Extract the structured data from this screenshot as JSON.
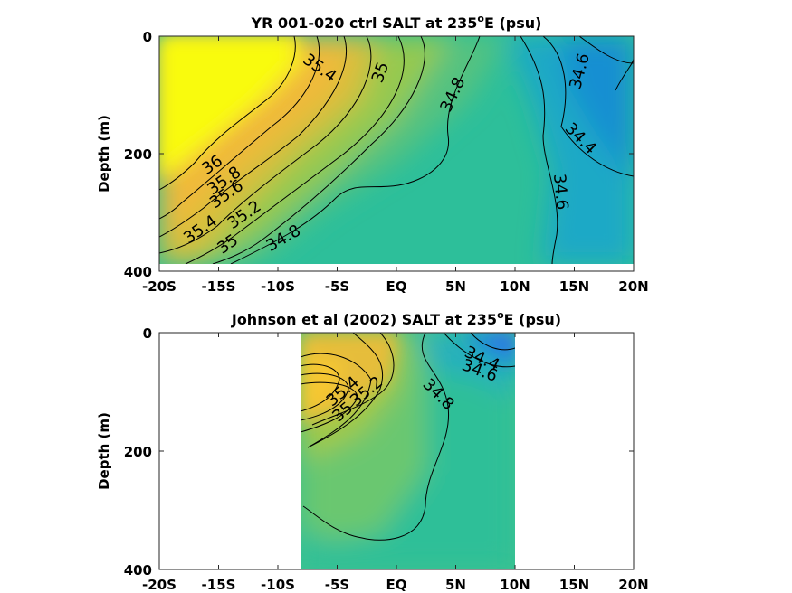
{
  "chart_data": [
    {
      "type": "heatmap",
      "title": "YR 001-020 ctrl SALT at 235",
      "title_sup": "o",
      "title_end": "E (psu)",
      "xlabel": "",
      "ylabel": "Depth (m)",
      "x_ticks": [
        -20,
        -15,
        -10,
        -5,
        0,
        5,
        10,
        15,
        20
      ],
      "x_tick_labels": [
        "-20S",
        "-15S",
        "-10S",
        "-5S",
        "EQ",
        "5N",
        "10N",
        "15N",
        "20N"
      ],
      "y_ticks": [
        0,
        200,
        400
      ],
      "y_tick_labels": [
        "0",
        "200",
        "400"
      ],
      "xlim": [
        -20,
        20
      ],
      "ylim": [
        400,
        0
      ],
      "data_extent": {
        "x": [
          -20,
          20
        ],
        "depth": [
          0,
          385
        ]
      },
      "contour_labels": [
        {
          "text": "35.4",
          "lat": -6.5,
          "depth": 55,
          "angle": 35
        },
        {
          "text": "35",
          "lat": -1.3,
          "depth": 62,
          "angle": -70
        },
        {
          "text": "34.8",
          "lat": 4.8,
          "depth": 100,
          "angle": -65
        },
        {
          "text": "34.6",
          "lat": 15.5,
          "depth": 60,
          "angle": -75
        },
        {
          "text": "34.4",
          "lat": 15.5,
          "depth": 175,
          "angle": 45
        },
        {
          "text": "34.6",
          "lat": 13.8,
          "depth": 265,
          "angle": 85
        },
        {
          "text": "36",
          "lat": -15.5,
          "depth": 220,
          "angle": -35
        },
        {
          "text": "35.8",
          "lat": -14.5,
          "depth": 247,
          "angle": -35
        },
        {
          "text": "35.6",
          "lat": -14.3,
          "depth": 270,
          "angle": -35
        },
        {
          "text": "35.4",
          "lat": -16.5,
          "depth": 330,
          "angle": -35
        },
        {
          "text": "35.2",
          "lat": -12.8,
          "depth": 305,
          "angle": -35
        },
        {
          "text": "35",
          "lat": -14.2,
          "depth": 355,
          "angle": -35
        },
        {
          "text": "34.8",
          "lat": -9.5,
          "depth": 345,
          "angle": -30
        }
      ]
    },
    {
      "type": "heatmap",
      "title": "Johnson et al (2002) SALT at 235",
      "title_sup": "o",
      "title_end": "E (psu)",
      "xlabel": "",
      "ylabel": "Depth (m)",
      "x_ticks": [
        -20,
        -15,
        -10,
        -5,
        0,
        5,
        10,
        15,
        20
      ],
      "x_tick_labels": [
        "-20S",
        "-15S",
        "-10S",
        "-5S",
        "EQ",
        "5N",
        "10N",
        "15N",
        "20N"
      ],
      "y_ticks": [
        0,
        200,
        400
      ],
      "y_tick_labels": [
        "0",
        "200",
        "400"
      ],
      "xlim": [
        -20,
        20
      ],
      "ylim": [
        400,
        0
      ],
      "data_extent": {
        "x": [
          -8,
          10
        ],
        "depth": [
          0,
          400
        ]
      },
      "contour_labels": [
        {
          "text": "35.4",
          "lat": -4.5,
          "depth": 100,
          "angle": -40
        },
        {
          "text": "35.2",
          "lat": -2.5,
          "depth": 100,
          "angle": -40
        },
        {
          "text": "35",
          "lat": -4.5,
          "depth": 135,
          "angle": -40
        },
        {
          "text": "34.4",
          "lat": 7.2,
          "depth": 45,
          "angle": 25
        },
        {
          "text": "34.6",
          "lat": 7.0,
          "depth": 65,
          "angle": 20
        },
        {
          "text": "34.8",
          "lat": 3.5,
          "depth": 105,
          "angle": 45
        }
      ]
    }
  ]
}
